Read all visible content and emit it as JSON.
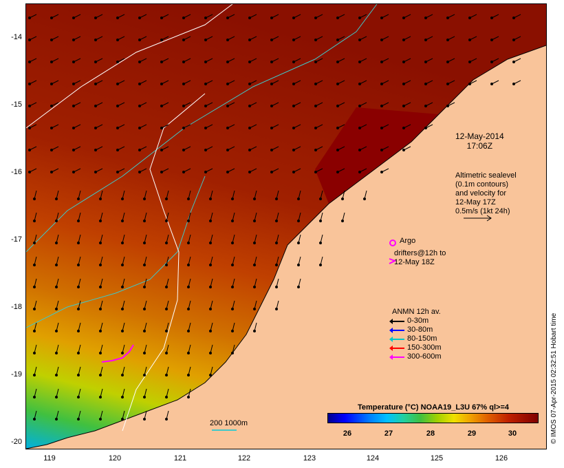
{
  "map": {
    "y_labels": [
      "-14",
      "-15",
      "-16",
      "-17",
      "-18",
      "-19",
      "-20"
    ],
    "x_labels": [
      "119",
      "120",
      "121",
      "122",
      "123",
      "124",
      "125",
      "126"
    ],
    "date_stamp": [
      "12-May-2014",
      "17:06Z"
    ],
    "altimetry_text": [
      "Altimetric sealevel",
      "(0.1m contours)",
      "and velocity for",
      "12-May 17Z",
      "0.5m/s (1kt 24h)"
    ],
    "argo_label": "Argo",
    "drifter_text": [
      "drifters@12h to",
      "12-May 18Z"
    ],
    "anmn_title": "ANMN 12h av.",
    "anmn_items": [
      {
        "label": "0-30m",
        "color": "#000000"
      },
      {
        "label": "30-80m",
        "color": "#0000ff"
      },
      {
        "label": "80-150m",
        "color": "#00c8c8"
      },
      {
        "label": "150-300m",
        "color": "#ff0000"
      },
      {
        "label": "300-600m",
        "color": "#ff00ff"
      }
    ],
    "scale_text": "200  1000m",
    "colorbar_title": "Temperature (°C) NOAA19_L3U 67% ql>=4",
    "colorbar_ticks": [
      "26",
      "27",
      "28",
      "29",
      "30"
    ],
    "credit": "© IMOS 07-Apr-2015 02:32:51 Hobart time",
    "colors": {
      "land": "#f9c49a",
      "warm_sea": "#b22a00",
      "hot_sea": "#8a0000",
      "contour_200": "#40c8c8",
      "contour_1000": "#ffffff",
      "drifter": "#ff00ff"
    }
  }
}
